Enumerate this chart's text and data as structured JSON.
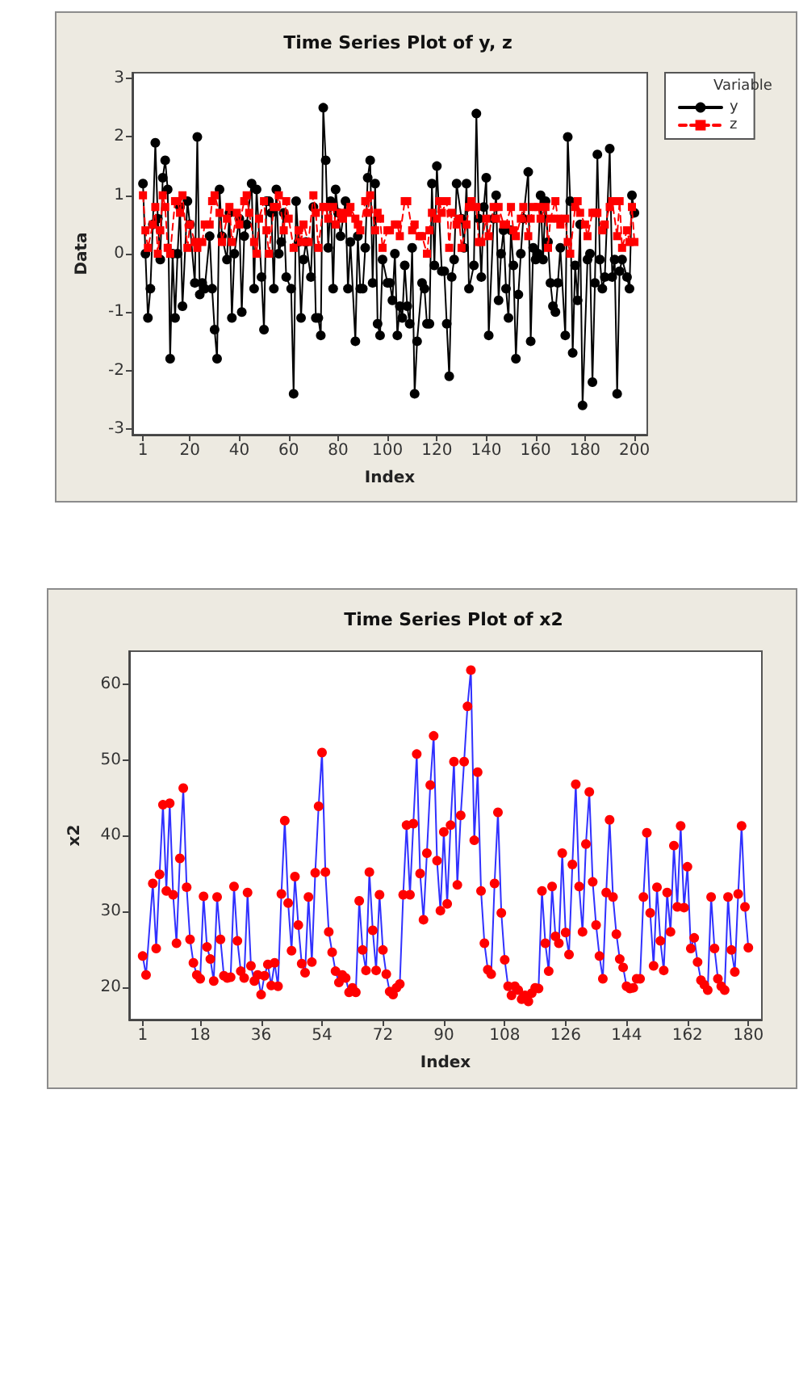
{
  "chart_data": [
    {
      "type": "line",
      "title": "Time Series Plot of y, z",
      "xlabel": "Index",
      "ylabel": "Data",
      "legend_title": "Variable",
      "legend": "right",
      "xlim": [
        -3.3,
        205.2
      ],
      "ylim": [
        -3.1,
        3.1
      ],
      "xticks": [
        1,
        20,
        40,
        60,
        80,
        100,
        120,
        140,
        160,
        180,
        200
      ],
      "yticks": [
        -3,
        -2,
        -1,
        0,
        1,
        2,
        3
      ],
      "series": [
        {
          "name": "y",
          "color": "#000000",
          "marker": "circle",
          "line_style": "solid",
          "x": [
            1,
            2,
            3,
            4,
            5,
            6,
            7,
            8,
            9,
            10,
            11,
            12,
            13,
            14,
            15,
            16,
            17,
            19,
            20,
            22,
            23,
            24,
            25,
            26,
            28,
            29,
            30,
            31,
            32,
            33,
            35,
            36,
            37,
            38,
            40,
            41,
            42,
            43,
            45,
            46,
            47,
            49,
            50,
            51,
            52,
            53,
            54,
            55,
            56,
            57,
            58,
            59,
            61,
            62,
            63,
            64,
            65,
            66,
            67,
            69,
            70,
            71,
            72,
            73,
            74,
            75,
            76,
            77,
            78,
            79,
            80,
            81,
            83,
            84,
            85,
            87,
            88,
            89,
            90,
            91,
            92,
            93,
            94,
            95,
            96,
            97,
            98,
            100,
            101,
            102,
            103,
            104,
            105,
            106,
            107,
            108,
            109,
            110,
            111,
            112,
            114,
            115,
            116,
            117,
            118,
            119,
            120,
            122,
            123,
            124,
            125,
            126,
            127,
            128,
            130,
            131,
            132,
            133,
            135,
            136,
            137,
            138,
            139,
            140,
            141,
            143,
            144,
            145,
            146,
            147,
            148,
            149,
            150,
            151,
            152,
            153,
            154,
            155,
            157,
            158,
            159,
            160,
            161,
            162,
            163,
            164,
            165,
            166,
            167,
            168,
            169,
            170,
            172,
            173,
            174,
            175,
            176,
            177,
            178,
            179,
            181,
            182,
            183,
            184,
            185,
            186,
            187,
            188,
            190,
            191,
            192,
            193,
            194,
            195,
            197,
            198,
            199,
            200
          ],
          "values": [
            1.2,
            0,
            -1.1,
            -0.6,
            0.5,
            1.9,
            0.6,
            -0.1,
            1.3,
            1.6,
            1.1,
            -1.8,
            0,
            -1.1,
            0,
            0.8,
            -0.9,
            0.9,
            0.5,
            -0.5,
            2,
            -0.7,
            -0.5,
            -0.6,
            0.3,
            -0.6,
            -1.3,
            -1.8,
            1.1,
            0.3,
            -0.1,
            0.7,
            -1.1,
            0,
            0.6,
            -1,
            0.3,
            0.5,
            1.2,
            -0.6,
            1.1,
            -0.4,
            -1.3,
            0.9,
            0.9,
            0.7,
            -0.6,
            1.1,
            0,
            0.2,
            0.7,
            -0.4,
            -0.6,
            -2.4,
            0.9,
            0.2,
            -1.1,
            -0.1,
            0.2,
            -0.4,
            0.8,
            -1.1,
            -1.1,
            -1.4,
            2.5,
            1.6,
            0.1,
            0.9,
            -0.6,
            1.1,
            0.7,
            0.3,
            0.9,
            -0.6,
            0.2,
            -1.5,
            0.3,
            -0.6,
            -0.6,
            0.1,
            1.3,
            1.6,
            -0.5,
            1.2,
            -1.2,
            -1.4,
            -0.1,
            -0.5,
            -0.5,
            -0.8,
            0,
            -1.4,
            -0.9,
            -1.1,
            -0.2,
            -0.9,
            -1.2,
            0.1,
            -2.4,
            -1.5,
            -0.5,
            -0.6,
            -1.2,
            -1.2,
            1.2,
            -0.2,
            1.5,
            -0.3,
            -0.3,
            -1.2,
            -2.1,
            -0.4,
            -0.1,
            1.2,
            0.6,
            0.1,
            1.2,
            -0.6,
            -0.2,
            2.4,
            0.6,
            -0.4,
            0.8,
            1.3,
            -1.4,
            0.6,
            1,
            -0.8,
            0,
            0.4,
            -0.6,
            -1.1,
            0.4,
            -0.2,
            -1.8,
            -0.7,
            0,
            0.6,
            1.4,
            -1.5,
            0.1,
            -0.1,
            0,
            1,
            -0.1,
            0.9,
            0.2,
            -0.5,
            -0.9,
            -1,
            -0.5,
            0.1,
            -1.4,
            2,
            0.9,
            -1.7,
            -0.2,
            -0.8,
            0.5,
            -2.6,
            -0.1,
            0,
            -2.2,
            -0.5,
            1.7,
            -0.1,
            -0.6,
            -0.4,
            1.8,
            -0.4,
            -0.1,
            -2.4,
            -0.3,
            -0.1,
            -0.4,
            -0.6,
            1,
            0.7
          ]
        },
        {
          "name": "z",
          "color": "#ff0000",
          "marker": "square",
          "line_style": "dashed",
          "x": [
            1,
            2,
            3,
            5,
            6,
            7,
            8,
            9,
            10,
            11,
            12,
            14,
            15,
            16,
            17,
            19,
            20,
            22,
            23,
            25,
            26,
            28,
            29,
            30,
            32,
            33,
            35,
            36,
            37,
            39,
            40,
            42,
            43,
            44,
            46,
            47,
            48,
            50,
            51,
            52,
            54,
            55,
            56,
            58,
            59,
            60,
            62,
            64,
            65,
            66,
            68,
            70,
            71,
            72,
            74,
            75,
            76,
            78,
            79,
            81,
            82,
            84,
            85,
            87,
            88,
            89,
            91,
            92,
            93,
            95,
            96,
            97,
            98,
            100,
            101,
            103,
            104,
            105,
            107,
            108,
            110,
            111,
            113,
            114,
            116,
            117,
            118,
            120,
            121,
            122,
            124,
            125,
            126,
            128,
            129,
            130,
            132,
            133,
            134,
            136,
            137,
            138,
            140,
            141,
            143,
            144,
            145,
            147,
            148,
            150,
            151,
            152,
            154,
            155,
            157,
            158,
            159,
            161,
            162,
            164,
            165,
            166,
            168,
            169,
            170,
            172,
            173,
            174,
            176,
            177,
            178,
            180,
            181,
            183,
            184,
            185,
            187,
            188,
            190,
            191,
            193,
            194,
            195,
            197,
            198,
            199,
            200
          ],
          "values": [
            1,
            0.4,
            0.1,
            0.5,
            0.8,
            0,
            0.4,
            1,
            0.8,
            0.1,
            0,
            0.9,
            0.9,
            0.7,
            1,
            0.1,
            0.5,
            0.2,
            0.1,
            0.2,
            0.5,
            0.5,
            0.9,
            1,
            0.7,
            0.2,
            0.6,
            0.8,
            0.2,
            0.7,
            0.5,
            0.9,
            1,
            0.7,
            0.2,
            0,
            0.6,
            0.9,
            0.4,
            0,
            0.8,
            0.8,
            1,
            0.4,
            0.9,
            0.6,
            0.1,
            0.4,
            0.2,
            0.5,
            0.2,
            1,
            0.7,
            0.1,
            0.8,
            0.8,
            0.6,
            0.8,
            0.5,
            0.7,
            0.6,
            0.7,
            0.8,
            0.6,
            0.5,
            0.4,
            0.9,
            0.7,
            1,
            0.4,
            0.7,
            0.6,
            0.1,
            0.4,
            0.4,
            0.5,
            0.5,
            0.3,
            0.9,
            0.9,
            0.4,
            0.5,
            0.3,
            0.3,
            0,
            0.4,
            0.7,
            0.6,
            0.9,
            0.7,
            0.9,
            0.1,
            0.7,
            0.5,
            0.6,
            0.1,
            0.5,
            0.8,
            0.9,
            0.8,
            0.2,
            0.2,
            0.6,
            0.3,
            0.8,
            0.6,
            0.8,
            0.5,
            0.5,
            0.8,
            0.4,
            0.3,
            0.6,
            0.8,
            0.3,
            0.6,
            0.8,
            0.8,
            0.6,
            0.8,
            0.1,
            0.6,
            0.9,
            0.6,
            0.5,
            0.6,
            0.2,
            0,
            0.8,
            0.9,
            0.7,
            0.5,
            0.3,
            0.7,
            0.7,
            0.7,
            0.4,
            0.5,
            0.8,
            0.9,
            0.3,
            0.9,
            0.1,
            0.4,
            0.2,
            0.8,
            0.2
          ]
        }
      ]
    },
    {
      "type": "line",
      "title": "Time Series Plot of x2",
      "xlabel": "Index",
      "ylabel": "x2",
      "xlim": [
        -3,
        184
      ],
      "ylim": [
        15.7,
        64.4
      ],
      "xticks": [
        1,
        18,
        36,
        54,
        72,
        90,
        108,
        126,
        144,
        162,
        180
      ],
      "yticks": [
        20,
        30,
        40,
        50,
        60
      ],
      "series": [
        {
          "color": "#ff0000",
          "marker": "circle",
          "line_style": "solid",
          "x": [
            1,
            2,
            4,
            5,
            6,
            7,
            8,
            9,
            10,
            11,
            12,
            13,
            14,
            15,
            16,
            17,
            18,
            19,
            20,
            21,
            22,
            23,
            24,
            25,
            26,
            27,
            28,
            29,
            30,
            31,
            32,
            33,
            34,
            35,
            36,
            37,
            38,
            39,
            40,
            41,
            42,
            43,
            44,
            45,
            46,
            47,
            48,
            49,
            50,
            51,
            52,
            53,
            54,
            55,
            56,
            57,
            58,
            59,
            60,
            61,
            62,
            63,
            64,
            65,
            66,
            67,
            68,
            69,
            70,
            71,
            72,
            73,
            74,
            75,
            76,
            77,
            78,
            79,
            80,
            81,
            82,
            83,
            84,
            85,
            86,
            87,
            88,
            89,
            90,
            91,
            92,
            93,
            94,
            95,
            96,
            97,
            98,
            99,
            100,
            101,
            102,
            103,
            104,
            105,
            106,
            107,
            108,
            109,
            110,
            111,
            112,
            113,
            114,
            115,
            116,
            117,
            118,
            119,
            120,
            121,
            122,
            123,
            124,
            125,
            126,
            127,
            128,
            129,
            130,
            131,
            132,
            133,
            134,
            135,
            136,
            137,
            138,
            139,
            140,
            141,
            142,
            143,
            144,
            145,
            146,
            147,
            148,
            149,
            150,
            151,
            152,
            153,
            154,
            155,
            156,
            157,
            158,
            159,
            160,
            161,
            162,
            163,
            164,
            165,
            166,
            167,
            168,
            169,
            170,
            171,
            172,
            173,
            174,
            175,
            176,
            177,
            178,
            179,
            180
          ],
          "values": [
            24.1,
            21.6,
            33.7,
            25.1,
            34.9,
            44.1,
            32.7,
            44.3,
            32.2,
            25.8,
            37,
            46.3,
            33.2,
            26.3,
            23.2,
            21.6,
            21.1,
            32,
            25.3,
            23.7,
            20.8,
            31.9,
            26.3,
            21.5,
            21.2,
            21.3,
            33.3,
            26.1,
            22.1,
            21.2,
            32.5,
            22.8,
            20.8,
            21.6,
            19,
            21.5,
            23,
            20.2,
            23.2,
            20.1,
            32.3,
            42,
            31.1,
            24.8,
            34.6,
            28.2,
            23.1,
            21.9,
            31.9,
            23.3,
            35.1,
            43.9,
            51,
            35.2,
            27.3,
            24.6,
            22.1,
            20.6,
            21.6,
            21.2,
            19.3,
            19.9,
            19.3,
            31.4,
            24.9,
            22.2,
            35.2,
            27.5,
            22.2,
            32.2,
            24.9,
            21.7,
            19.4,
            19,
            19.9,
            20.4,
            32.2,
            41.4,
            32.2,
            41.6,
            50.8,
            35,
            28.9,
            37.7,
            46.7,
            53.2,
            36.7,
            30.1,
            40.5,
            31,
            41.4,
            49.8,
            33.5,
            42.7,
            49.8,
            57.1,
            61.9,
            39.4,
            48.4,
            32.7,
            25.8,
            22.3,
            21.7,
            33.7,
            43.1,
            29.8,
            23.6,
            20.1,
            18.9,
            20.1,
            19.6,
            18.4,
            18.9,
            18.1,
            19.2,
            19.9,
            19.8,
            32.7,
            25.8,
            22.1,
            33.3,
            26.7,
            25.8,
            37.7,
            27.2,
            24.3,
            36.2,
            46.8,
            33.3,
            27.3,
            38.9,
            45.8,
            33.9,
            28.2,
            24.1,
            21.1,
            32.5,
            42.1,
            31.9,
            27,
            23.7,
            22.6,
            20.1,
            19.8,
            19.9,
            21.1,
            21.1,
            31.9,
            40.4,
            29.8,
            22.8,
            33.2,
            26.1,
            22.2,
            32.5,
            27.3,
            38.7,
            30.6,
            41.3,
            30.5,
            35.9,
            25.1,
            26.5,
            23.3,
            20.9,
            20.3,
            19.6,
            31.9,
            25.1,
            21.1,
            20.1,
            19.6,
            31.9,
            24.9,
            22,
            32.3,
            41.3,
            30.6,
            25.2
          ]
        }
      ]
    }
  ]
}
